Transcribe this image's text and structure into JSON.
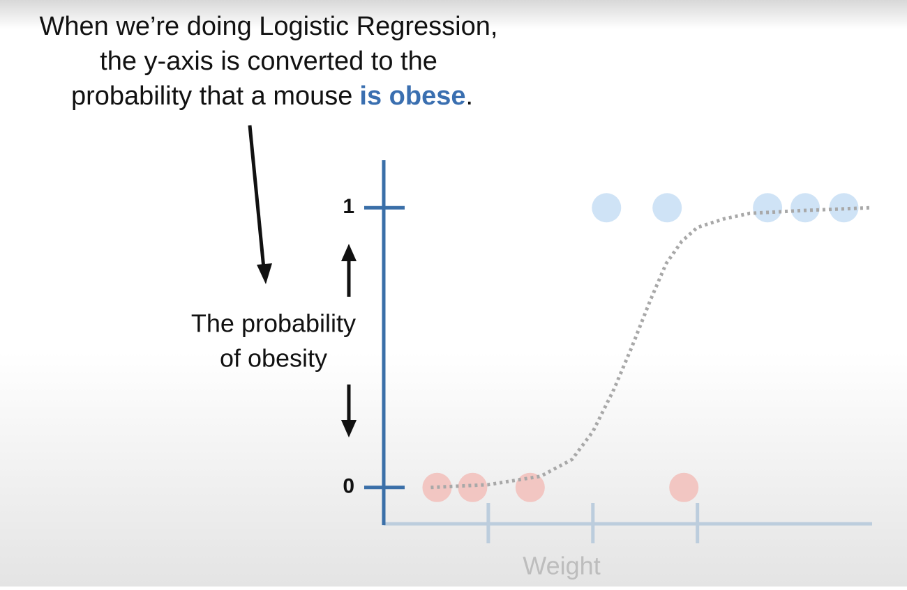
{
  "chart_data": {
    "type": "scatter",
    "title_lines": [
      "When we’re doing Logistic Regression,",
      "the y-axis is converted to the"
    ],
    "title_last": [
      "probability that a mouse",
      "is obese",
      "."
    ],
    "ylabel_lines": [
      "The probability",
      "of obesity"
    ],
    "xlabel": "Weight",
    "series": [
      {
        "color": "#f2c6c2",
        "x": [
          0.51,
          0.85,
          1.4,
          2.87
        ],
        "values": [
          0,
          0,
          0,
          0
        ]
      },
      {
        "color": "#cfe3f6",
        "x": [
          2.13,
          2.71,
          3.67,
          4.03,
          4.4
        ],
        "values": [
          1,
          1,
          1,
          1,
          1
        ]
      }
    ],
    "curve": {
      "color": "#a8a8a8",
      "x": [
        0.45,
        1.0,
        1.5,
        1.8,
        2.0,
        2.2,
        2.37,
        2.55,
        2.7,
        2.85,
        3.0,
        3.25,
        3.5,
        4.0,
        4.65
      ],
      "values": [
        0.0,
        0.01,
        0.04,
        0.1,
        0.2,
        0.35,
        0.5,
        0.67,
        0.8,
        0.88,
        0.93,
        0.96,
        0.98,
        0.99,
        1.0
      ]
    },
    "xlim": [
      0,
      4.67
    ],
    "xticks": [
      1,
      2,
      3
    ],
    "ylim": [
      -0.13,
      1.17
    ],
    "yticks": [
      0,
      1
    ]
  }
}
